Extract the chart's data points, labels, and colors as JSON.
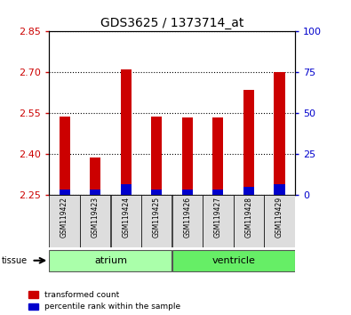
{
  "title": "GDS3625 / 1373714_at",
  "samples": [
    "GSM119422",
    "GSM119423",
    "GSM119424",
    "GSM119425",
    "GSM119426",
    "GSM119427",
    "GSM119428",
    "GSM119429"
  ],
  "transformed_count": [
    2.54,
    2.39,
    2.71,
    2.54,
    2.535,
    2.535,
    2.635,
    2.7
  ],
  "percentile_rank": [
    0.02,
    0.02,
    0.04,
    0.02,
    0.02,
    0.02,
    0.03,
    0.04
  ],
  "ylim_left": [
    2.25,
    2.85
  ],
  "ylim_right": [
    0,
    100
  ],
  "yticks_left": [
    2.25,
    2.4,
    2.55,
    2.7,
    2.85
  ],
  "yticks_right": [
    0,
    25,
    50,
    75,
    100
  ],
  "bar_color_red": "#cc0000",
  "bar_color_blue": "#0000cc",
  "bar_width": 0.35,
  "left_axis_color": "#cc0000",
  "right_axis_color": "#0000cc",
  "base_value": 2.25,
  "legend_red": "transformed count",
  "legend_blue": "percentile rank within the sample",
  "atrium_color": "#aaffaa",
  "ventricle_color": "#66ee66",
  "xticklabel_bg": "#dddddd"
}
